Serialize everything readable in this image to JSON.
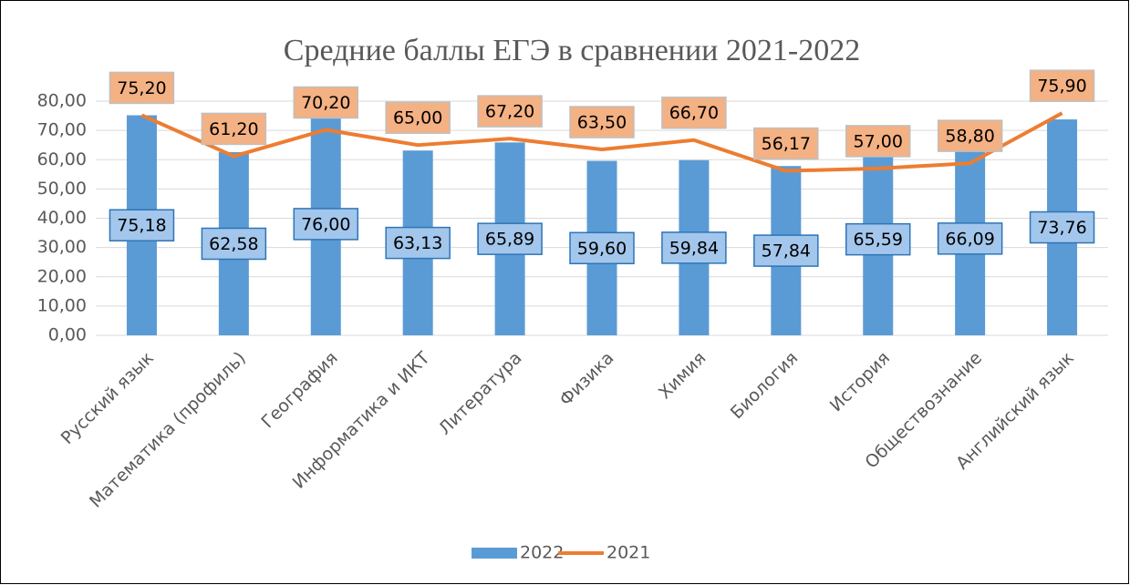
{
  "chart_data": {
    "type": "bar_line",
    "title": "Средние баллы ЕГЭ в сравнении 2021-2022",
    "categories": [
      "Русский язык",
      "Математика (профиль)",
      "География",
      "Информатика и ИКТ",
      "Литература",
      "Физика",
      "Химия",
      "Биология",
      "История",
      "Обществознание",
      "Английский язык"
    ],
    "series": [
      {
        "name": "2022",
        "type": "bar",
        "color": "#5b9bd5",
        "values": [
          75.18,
          62.58,
          76.0,
          63.13,
          65.89,
          59.6,
          59.84,
          57.84,
          65.59,
          66.09,
          73.76
        ],
        "value_labels": [
          "75,18",
          "62,58",
          "76,00",
          "63,13",
          "65,89",
          "59,60",
          "59,84",
          "57,84",
          "65,59",
          "66,09",
          "73,76"
        ]
      },
      {
        "name": "2021",
        "type": "line",
        "color": "#ed7d31",
        "values": [
          75.2,
          61.2,
          70.2,
          65.0,
          67.2,
          63.5,
          66.7,
          56.17,
          57.0,
          58.8,
          75.9
        ],
        "value_labels": [
          "75,20",
          "61,20",
          "70,20",
          "65,00",
          "67,20",
          "63,50",
          "66,70",
          "56,17",
          "57,00",
          "58,80",
          "75,90"
        ]
      }
    ],
    "ylim": [
      0,
      80
    ],
    "yticks": [
      {
        "value": 0,
        "label": "0,00"
      },
      {
        "value": 10,
        "label": "10,00"
      },
      {
        "value": 20,
        "label": "20,00"
      },
      {
        "value": 30,
        "label": "30,00"
      },
      {
        "value": 40,
        "label": "40,00"
      },
      {
        "value": 50,
        "label": "50,00"
      },
      {
        "value": 60,
        "label": "60,00"
      },
      {
        "value": 70,
        "label": "70,00"
      },
      {
        "value": 80,
        "label": "80,00"
      }
    ],
    "grid": true,
    "legend": "bottom"
  }
}
